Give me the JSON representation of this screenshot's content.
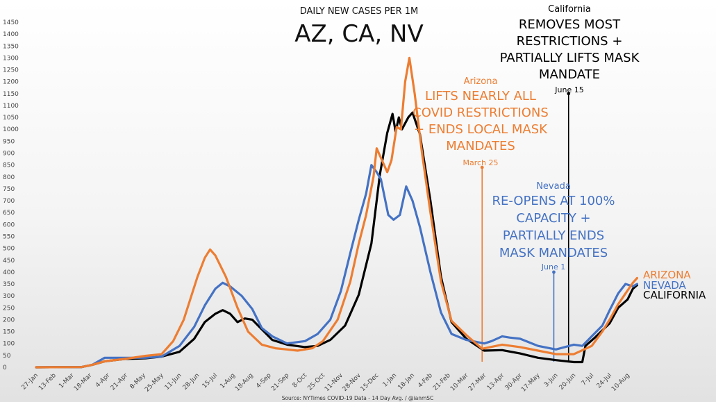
{
  "chart_data": {
    "type": "line",
    "subtitle": "DAILY NEW CASES PER 1M",
    "title": "AZ, CA, NV",
    "source": "Source: NYTimes COVID-19 Data - 14 Day Avg. / @ianmSC",
    "ylim": [
      0,
      1450
    ],
    "yticks": [
      0,
      50,
      100,
      150,
      200,
      250,
      300,
      350,
      400,
      450,
      500,
      550,
      600,
      650,
      700,
      750,
      800,
      850,
      900,
      950,
      1000,
      1050,
      1100,
      1150,
      1200,
      1250,
      1300,
      1350,
      1400,
      1450
    ],
    "xlim": [
      "2020-01-27",
      "2021-08-24"
    ],
    "xticks": [
      [
        "2020-01-27",
        "27-Jan"
      ],
      [
        "2020-02-13",
        "13-Feb"
      ],
      [
        "2020-03-01",
        "1-Mar"
      ],
      [
        "2020-03-18",
        "18-Mar"
      ],
      [
        "2020-04-04",
        "4-Apr"
      ],
      [
        "2020-04-21",
        "21-Apr"
      ],
      [
        "2020-05-08",
        "8-May"
      ],
      [
        "2020-05-25",
        "25-May"
      ],
      [
        "2020-06-11",
        "11-Jun"
      ],
      [
        "2020-06-28",
        "28-Jun"
      ],
      [
        "2020-07-15",
        "15-Jul"
      ],
      [
        "2020-08-01",
        "1-Aug"
      ],
      [
        "2020-08-18",
        "18-Aug"
      ],
      [
        "2020-09-04",
        "4-Sep"
      ],
      [
        "2020-09-21",
        "21-Sep"
      ],
      [
        "2020-10-08",
        "8-Oct"
      ],
      [
        "2020-10-25",
        "25-Oct"
      ],
      [
        "2020-11-11",
        "11-Nov"
      ],
      [
        "2020-11-28",
        "28-Nov"
      ],
      [
        "2020-12-15",
        "15-Dec"
      ],
      [
        "2021-01-01",
        "1-Jan"
      ],
      [
        "2021-01-18",
        "18-Jan"
      ],
      [
        "2021-02-04",
        "4-Feb"
      ],
      [
        "2021-02-21",
        "21-Feb"
      ],
      [
        "2021-03-10",
        "10-Mar"
      ],
      [
        "2021-03-27",
        "27-Mar"
      ],
      [
        "2021-04-13",
        "13-Apr"
      ],
      [
        "2021-04-30",
        "30-Apr"
      ],
      [
        "2021-05-17",
        "17-May"
      ],
      [
        "2021-06-03",
        "3-Jun"
      ],
      [
        "2021-06-20",
        "20-Jun"
      ],
      [
        "2021-07-07",
        "7-Jul"
      ],
      [
        "2021-07-24",
        "24-Jul"
      ],
      [
        "2021-08-10",
        "10-Aug"
      ]
    ],
    "series": [
      {
        "name": "CALIFORNIA",
        "color": "#000000",
        "points": [
          [
            "2020-01-27",
            0
          ],
          [
            "2020-03-10",
            1
          ],
          [
            "2020-03-20",
            10
          ],
          [
            "2020-04-01",
            25
          ],
          [
            "2020-04-20",
            35
          ],
          [
            "2020-05-10",
            38
          ],
          [
            "2020-05-25",
            45
          ],
          [
            "2020-06-11",
            65
          ],
          [
            "2020-06-25",
            120
          ],
          [
            "2020-07-05",
            190
          ],
          [
            "2020-07-15",
            225
          ],
          [
            "2020-07-22",
            240
          ],
          [
            "2020-07-29",
            225
          ],
          [
            "2020-08-05",
            190
          ],
          [
            "2020-08-12",
            205
          ],
          [
            "2020-08-19",
            200
          ],
          [
            "2020-08-28",
            160
          ],
          [
            "2020-09-07",
            115
          ],
          [
            "2020-09-21",
            95
          ],
          [
            "2020-10-08",
            85
          ],
          [
            "2020-10-20",
            90
          ],
          [
            "2020-11-01",
            115
          ],
          [
            "2020-11-15",
            175
          ],
          [
            "2020-11-28",
            305
          ],
          [
            "2020-12-10",
            520
          ],
          [
            "2020-12-18",
            810
          ],
          [
            "2020-12-25",
            985
          ],
          [
            "2020-12-30",
            1065
          ],
          [
            "2021-01-02",
            990
          ],
          [
            "2021-01-05",
            1050
          ],
          [
            "2021-01-08",
            1000
          ],
          [
            "2021-01-14",
            1050
          ],
          [
            "2021-01-18",
            1070
          ],
          [
            "2021-01-25",
            980
          ],
          [
            "2021-02-04",
            700
          ],
          [
            "2021-02-14",
            380
          ],
          [
            "2021-02-24",
            190
          ],
          [
            "2021-03-10",
            120
          ],
          [
            "2021-03-27",
            70
          ],
          [
            "2021-04-13",
            72
          ],
          [
            "2021-04-30",
            58
          ],
          [
            "2021-05-17",
            40
          ],
          [
            "2021-06-03",
            30
          ],
          [
            "2021-06-20",
            22
          ],
          [
            "2021-06-28",
            22
          ],
          [
            "2021-07-01",
            90
          ],
          [
            "2021-07-10",
            125
          ],
          [
            "2021-07-17",
            155
          ],
          [
            "2021-07-24",
            185
          ],
          [
            "2021-08-01",
            250
          ],
          [
            "2021-08-10",
            285
          ],
          [
            "2021-08-15",
            330
          ],
          [
            "2021-08-19",
            345
          ]
        ]
      },
      {
        "name": "NEVADA",
        "color": "#4472C4",
        "points": [
          [
            "2020-01-27",
            0
          ],
          [
            "2020-03-10",
            1
          ],
          [
            "2020-03-20",
            10
          ],
          [
            "2020-04-01",
            40
          ],
          [
            "2020-04-20",
            40
          ],
          [
            "2020-05-10",
            40
          ],
          [
            "2020-05-25",
            45
          ],
          [
            "2020-06-11",
            90
          ],
          [
            "2020-06-25",
            170
          ],
          [
            "2020-07-05",
            260
          ],
          [
            "2020-07-15",
            330
          ],
          [
            "2020-07-22",
            355
          ],
          [
            "2020-07-29",
            340
          ],
          [
            "2020-08-09",
            300
          ],
          [
            "2020-08-19",
            245
          ],
          [
            "2020-08-28",
            165
          ],
          [
            "2020-09-07",
            130
          ],
          [
            "2020-09-21",
            100
          ],
          [
            "2020-10-08",
            110
          ],
          [
            "2020-10-20",
            140
          ],
          [
            "2020-11-01",
            200
          ],
          [
            "2020-11-11",
            320
          ],
          [
            "2020-11-20",
            480
          ],
          [
            "2020-11-28",
            620
          ],
          [
            "2020-12-05",
            730
          ],
          [
            "2020-12-10",
            850
          ],
          [
            "2020-12-15",
            820
          ],
          [
            "2020-12-19",
            790
          ],
          [
            "2020-12-26",
            640
          ],
          [
            "2020-12-31",
            620
          ],
          [
            "2021-01-06",
            640
          ],
          [
            "2021-01-12",
            760
          ],
          [
            "2021-01-18",
            700
          ],
          [
            "2021-01-25",
            590
          ],
          [
            "2021-02-04",
            400
          ],
          [
            "2021-02-14",
            230
          ],
          [
            "2021-02-24",
            140
          ],
          [
            "2021-03-10",
            115
          ],
          [
            "2021-03-27",
            100
          ],
          [
            "2021-04-03",
            110
          ],
          [
            "2021-04-13",
            130
          ],
          [
            "2021-04-20",
            125
          ],
          [
            "2021-04-30",
            120
          ],
          [
            "2021-05-17",
            90
          ],
          [
            "2021-06-03",
            75
          ],
          [
            "2021-06-20",
            95
          ],
          [
            "2021-06-28",
            90
          ],
          [
            "2021-07-07",
            130
          ],
          [
            "2021-07-17",
            175
          ],
          [
            "2021-07-24",
            240
          ],
          [
            "2021-08-01",
            310
          ],
          [
            "2021-08-08",
            350
          ],
          [
            "2021-08-15",
            340
          ],
          [
            "2021-08-19",
            350
          ]
        ]
      },
      {
        "name": "ARIZONA",
        "color": "#ED7D31",
        "points": [
          [
            "2020-01-27",
            0
          ],
          [
            "2020-03-10",
            1
          ],
          [
            "2020-03-20",
            10
          ],
          [
            "2020-04-01",
            25
          ],
          [
            "2020-04-20",
            35
          ],
          [
            "2020-05-10",
            48
          ],
          [
            "2020-05-25",
            55
          ],
          [
            "2020-06-05",
            110
          ],
          [
            "2020-06-15",
            200
          ],
          [
            "2020-06-28",
            380
          ],
          [
            "2020-07-05",
            460
          ],
          [
            "2020-07-10",
            495
          ],
          [
            "2020-07-15",
            470
          ],
          [
            "2020-07-25",
            380
          ],
          [
            "2020-08-05",
            250
          ],
          [
            "2020-08-15",
            150
          ],
          [
            "2020-08-28",
            95
          ],
          [
            "2020-09-10",
            80
          ],
          [
            "2020-09-21",
            75
          ],
          [
            "2020-10-01",
            70
          ],
          [
            "2020-10-15",
            80
          ],
          [
            "2020-10-25",
            110
          ],
          [
            "2020-11-08",
            200
          ],
          [
            "2020-11-20",
            360
          ],
          [
            "2020-11-28",
            520
          ],
          [
            "2020-12-05",
            640
          ],
          [
            "2020-12-12",
            800
          ],
          [
            "2020-12-15",
            920
          ],
          [
            "2020-12-19",
            880
          ],
          [
            "2020-12-25",
            820
          ],
          [
            "2020-12-29",
            870
          ],
          [
            "2021-01-03",
            1010
          ],
          [
            "2021-01-07",
            1000
          ],
          [
            "2021-01-11",
            1200
          ],
          [
            "2021-01-15",
            1300
          ],
          [
            "2021-01-20",
            1150
          ],
          [
            "2021-01-27",
            900
          ],
          [
            "2021-02-04",
            650
          ],
          [
            "2021-02-14",
            360
          ],
          [
            "2021-02-24",
            195
          ],
          [
            "2021-03-10",
            135
          ],
          [
            "2021-03-25",
            78
          ],
          [
            "2021-04-13",
            95
          ],
          [
            "2021-04-30",
            85
          ],
          [
            "2021-05-17",
            70
          ],
          [
            "2021-06-03",
            55
          ],
          [
            "2021-06-20",
            55
          ],
          [
            "2021-07-07",
            90
          ],
          [
            "2021-07-17",
            150
          ],
          [
            "2021-07-24",
            200
          ],
          [
            "2021-08-01",
            265
          ],
          [
            "2021-08-08",
            310
          ],
          [
            "2021-08-15",
            355
          ],
          [
            "2021-08-19",
            375
          ]
        ]
      }
    ],
    "annotations": [
      {
        "state": "California",
        "date_label": "June 15",
        "lines": [
          "REMOVES MOST",
          "RESTRICTIONS +",
          "PARTIALLY LIFTS MASK",
          "MANDATE"
        ],
        "date": "2021-06-15",
        "value": 1150,
        "color": "#000000"
      },
      {
        "state": "Arizona",
        "date_label": "March 25",
        "lines": [
          "LIFTS NEARLY ALL",
          "COVID RESTRICTIONS",
          "+ ENDS LOCAL MASK",
          "MANDATES"
        ],
        "date": "2021-03-25",
        "value": 840,
        "color": "#ED7D31"
      },
      {
        "state": "Nevada",
        "date_label": "June 1",
        "lines": [
          "RE-OPENS AT 100%",
          "CAPACITY +",
          "PARTIALLY ENDS",
          "MASK MANDATES"
        ],
        "date": "2021-06-01",
        "value": 400,
        "color": "#4472C4"
      }
    ]
  }
}
